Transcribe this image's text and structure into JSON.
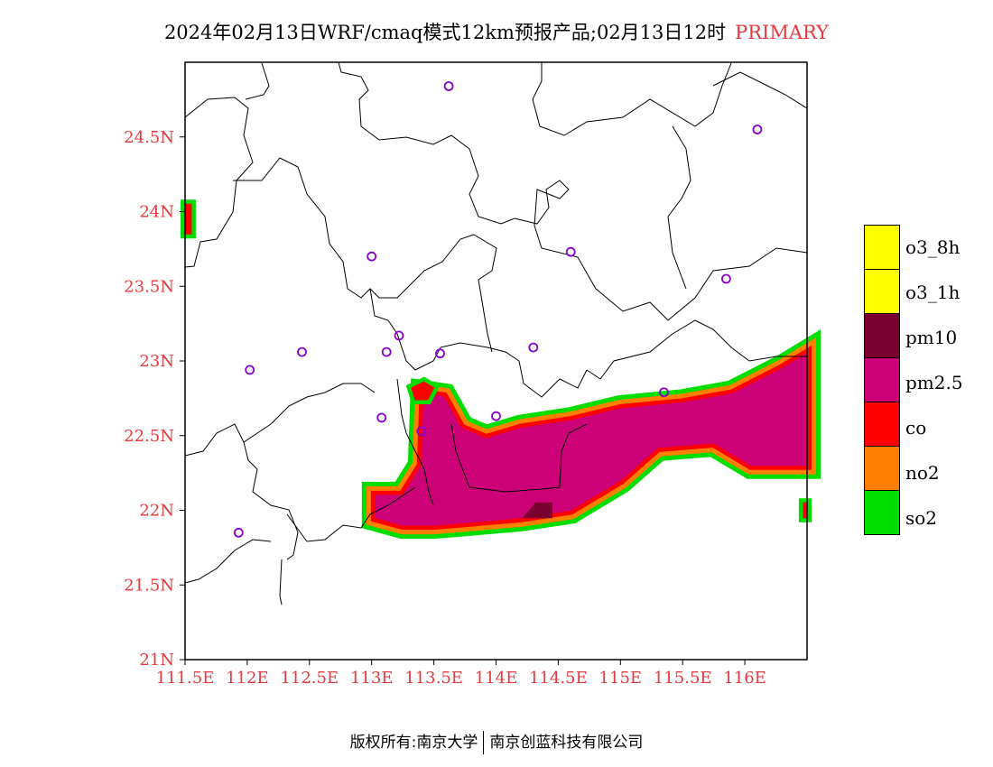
{
  "title": {
    "text": "2024年02月13日WRF/cmaq模式12km预报产品;02月13日12时",
    "tag": "PRIMARY"
  },
  "map": {
    "lon_range": [
      111.5,
      116.5
    ],
    "lat_range": [
      21.0,
      25.0
    ],
    "x_ticks": [
      "111.5E",
      "112E",
      "112.5E",
      "113E",
      "113.5E",
      "114E",
      "114.5E",
      "115E",
      "115.5E",
      "116E"
    ],
    "x_tick_values": [
      111.5,
      112.0,
      112.5,
      113.0,
      113.5,
      114.0,
      114.5,
      115.0,
      115.5,
      116.0
    ],
    "y_ticks": [
      "21N",
      "21.5N",
      "22N",
      "22.5N",
      "23N",
      "23.5N",
      "24N",
      "24.5N"
    ],
    "y_tick_values": [
      21.0,
      21.5,
      22.0,
      22.5,
      23.0,
      23.5,
      24.0,
      24.5
    ],
    "stations": [
      [
        113.62,
        24.84
      ],
      [
        116.1,
        24.55
      ],
      [
        113.0,
        23.7
      ],
      [
        114.6,
        23.73
      ],
      [
        115.85,
        23.55
      ],
      [
        113.22,
        23.17
      ],
      [
        112.44,
        23.06
      ],
      [
        113.12,
        23.06
      ],
      [
        113.55,
        23.05
      ],
      [
        114.3,
        23.09
      ],
      [
        112.02,
        22.94
      ],
      [
        115.35,
        22.79
      ],
      [
        113.08,
        22.62
      ],
      [
        113.4,
        22.53
      ],
      [
        114.0,
        22.63
      ],
      [
        111.93,
        21.85
      ]
    ],
    "pollutant_regions": [
      {
        "species": "pm2.5",
        "color": "#cc0077",
        "lonlat": [
          [
            113.42,
            22.78
          ],
          [
            113.58,
            22.76
          ],
          [
            113.72,
            22.55
          ],
          [
            113.92,
            22.48
          ],
          [
            114.2,
            22.55
          ],
          [
            114.6,
            22.6
          ],
          [
            115.0,
            22.68
          ],
          [
            115.5,
            22.72
          ],
          [
            115.9,
            22.78
          ],
          [
            116.3,
            22.95
          ],
          [
            116.5,
            23.05
          ],
          [
            116.5,
            22.3
          ],
          [
            116.05,
            22.3
          ],
          [
            115.75,
            22.45
          ],
          [
            115.3,
            22.42
          ],
          [
            115.0,
            22.2
          ],
          [
            114.6,
            22.0
          ],
          [
            114.2,
            21.95
          ],
          [
            113.8,
            21.92
          ],
          [
            113.5,
            21.9
          ],
          [
            113.25,
            21.9
          ],
          [
            113.03,
            21.95
          ],
          [
            113.03,
            22.1
          ],
          [
            113.25,
            22.1
          ],
          [
            113.4,
            22.3
          ]
        ]
      },
      {
        "species": "co",
        "color": "#ff0000",
        "lonlat": [
          [
            113.32,
            22.82
          ],
          [
            113.42,
            22.86
          ],
          [
            113.5,
            22.82
          ],
          [
            113.45,
            22.74
          ],
          [
            113.35,
            22.74
          ]
        ]
      },
      {
        "species": "pm10",
        "color": "#7a0030",
        "lonlat": [
          [
            114.22,
            21.95
          ],
          [
            114.45,
            21.95
          ],
          [
            114.45,
            22.05
          ],
          [
            114.32,
            22.05
          ]
        ]
      },
      {
        "species": "co",
        "color": "#ff0000",
        "lonlat": [
          [
            111.5,
            24.05
          ],
          [
            111.55,
            24.05
          ],
          [
            111.55,
            23.85
          ],
          [
            111.5,
            23.85
          ]
        ]
      },
      {
        "species": "co",
        "color": "#ff0000",
        "lonlat": [
          [
            116.47,
            22.05
          ],
          [
            116.5,
            22.05
          ],
          [
            116.5,
            21.95
          ],
          [
            116.47,
            21.95
          ]
        ]
      }
    ]
  },
  "legend": [
    {
      "label": "o3_8h",
      "color": "#ffff00"
    },
    {
      "label": "o3_1h",
      "color": "#ffff00"
    },
    {
      "label": "pm10",
      "color": "#7a0030"
    },
    {
      "label": "pm2.5",
      "color": "#cc0077"
    },
    {
      "label": "co",
      "color": "#ff0000"
    },
    {
      "label": "no2",
      "color": "#ff8000"
    },
    {
      "label": "so2",
      "color": "#00dd00"
    }
  ],
  "footer": {
    "left": "版权所有:南京大学",
    "right": "南京创蓝科技有限公司"
  }
}
